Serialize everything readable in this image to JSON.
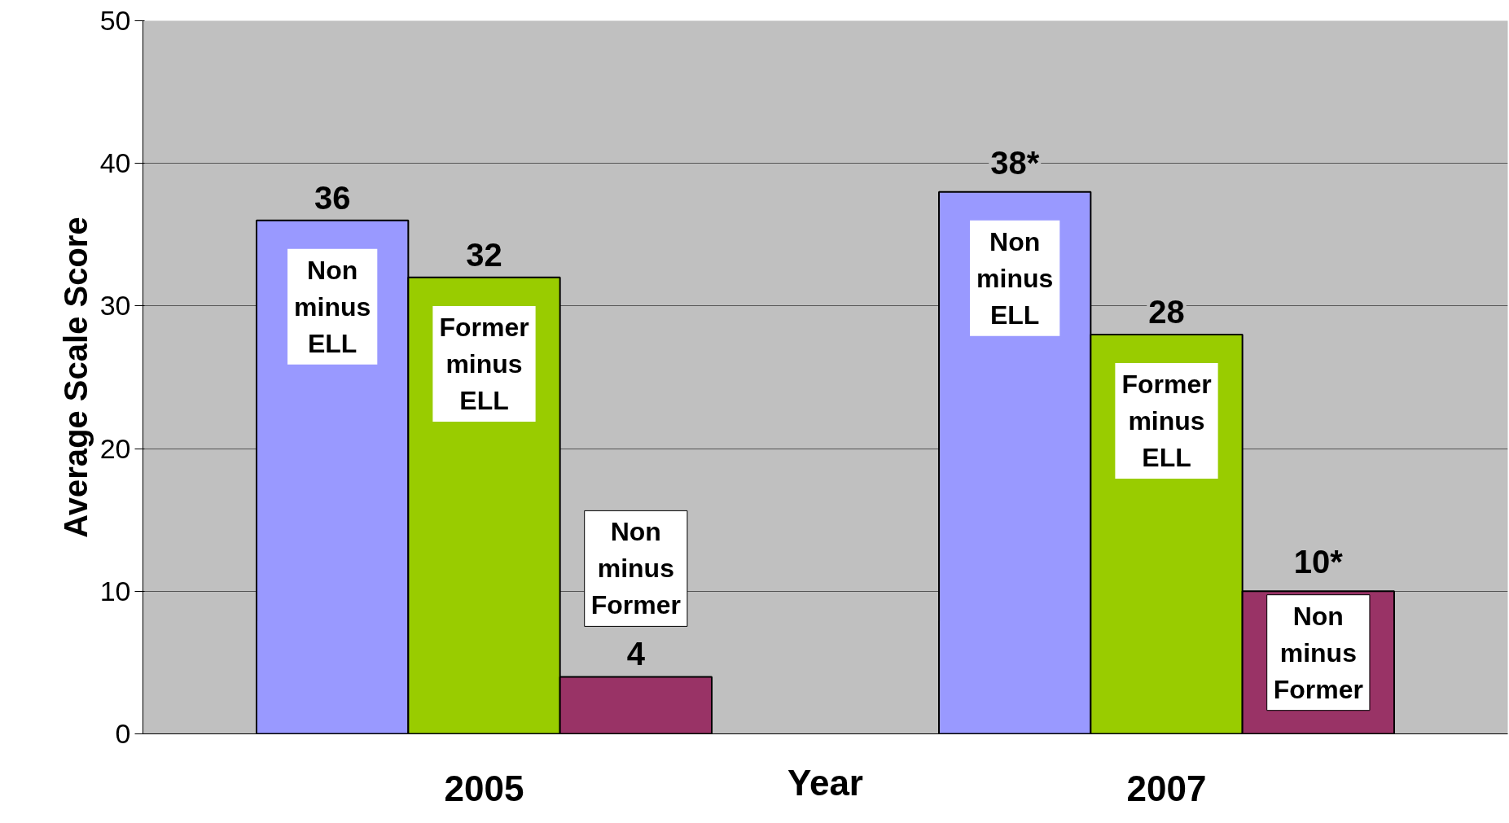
{
  "chart_data": {
    "type": "bar",
    "xlabel": "Year",
    "ylabel": "Average Scale Score",
    "categories": [
      "2005",
      "2007"
    ],
    "series": [
      {
        "name": "Non minus ELL",
        "color": "#9999ff",
        "values": [
          36,
          38
        ],
        "value_labels": [
          "36",
          "38*"
        ]
      },
      {
        "name": "Former minus ELL",
        "color": "#99cc00",
        "values": [
          32,
          28
        ],
        "value_labels": [
          "32",
          "28"
        ]
      },
      {
        "name": "Non minus Former",
        "color": "#993366",
        "values": [
          4,
          10
        ],
        "value_labels": [
          "4",
          "10*"
        ]
      }
    ],
    "ylim": [
      0,
      50
    ],
    "yticks": [
      0,
      10,
      20,
      30,
      40,
      50
    ],
    "grid": "y"
  }
}
